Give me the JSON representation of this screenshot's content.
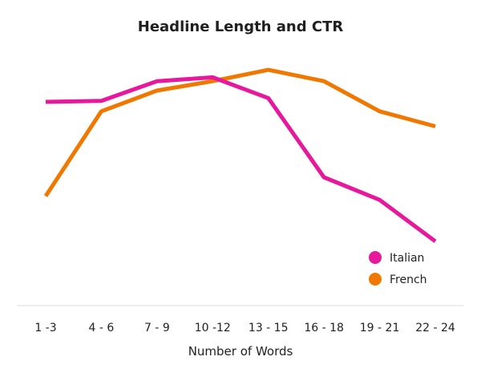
{
  "chart_data": {
    "type": "line",
    "title": "Headline Length and CTR",
    "xlabel": "Number of Words",
    "ylabel": "",
    "categories": [
      "1 -3",
      "4 - 6",
      "7 - 9",
      "10 -12",
      "13 - 15",
      "16 - 18",
      "19 - 21",
      "22 - 24"
    ],
    "ylim": [
      0,
      100
    ],
    "grid": false,
    "legend_position": "bottom-right",
    "series": [
      {
        "name": "Italian",
        "color": "#e6189b",
        "values": [
          80,
          80.5,
          91,
          93,
          82,
          40,
          28,
          6
        ]
      },
      {
        "name": "French",
        "color": "#f07800",
        "values": [
          30,
          75,
          86,
          91,
          97,
          91,
          75,
          67
        ]
      }
    ]
  }
}
